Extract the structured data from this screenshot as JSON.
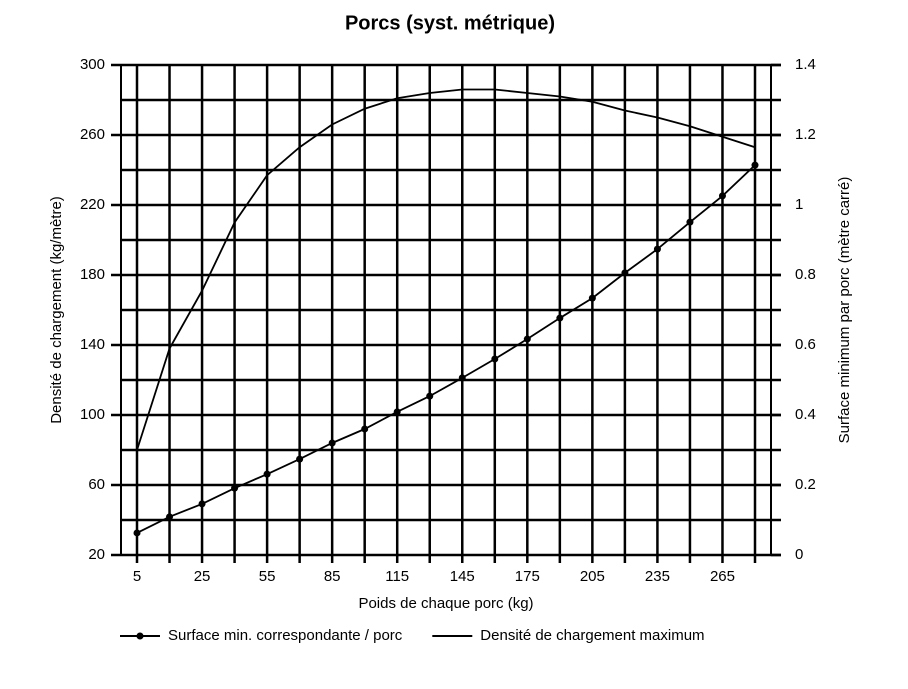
{
  "chart_data": {
    "type": "line",
    "title": "Porcs (syst. métrique)",
    "x_label": "Poids de chaque porc (kg)",
    "y_label": "Densité de chargement (kg/mètre)",
    "y2_label": "Surface minimum par porc (mètre carré)",
    "categories": [
      "5",
      null,
      "25",
      null,
      "55",
      null,
      "85",
      null,
      "115",
      null,
      "145",
      null,
      "175",
      null,
      "205",
      null,
      "235",
      null,
      "265",
      null
    ],
    "series": [
      {
        "name": "Surface min. correspondante / porc",
        "color": "#000000",
        "axis": "y2",
        "markers": true,
        "values": [
          0.063,
          0.109,
          0.146,
          0.191,
          0.231,
          0.274,
          0.32,
          0.36,
          0.409,
          0.454,
          0.506,
          0.56,
          0.617,
          0.677,
          0.734,
          0.806,
          0.874,
          0.951,
          1.026,
          1.114
        ]
      },
      {
        "name": "Densité de chargement maximum",
        "color": "#000000",
        "markers": false,
        "values": [
          80,
          138,
          171,
          210,
          237,
          253,
          266,
          275,
          281,
          284,
          286,
          286,
          284,
          282,
          279,
          274,
          270,
          265,
          259,
          253
        ]
      }
    ],
    "ylim": [
      20,
      300
    ],
    "yticks": [
      20,
      60,
      100,
      140,
      180,
      220,
      260,
      300
    ],
    "y2lim": [
      0,
      1.4
    ],
    "y2ticks": [
      0,
      0.2,
      0.4,
      0.6,
      0.8,
      1,
      1.2,
      1.4
    ],
    "grid": true,
    "legend": "bottom"
  }
}
